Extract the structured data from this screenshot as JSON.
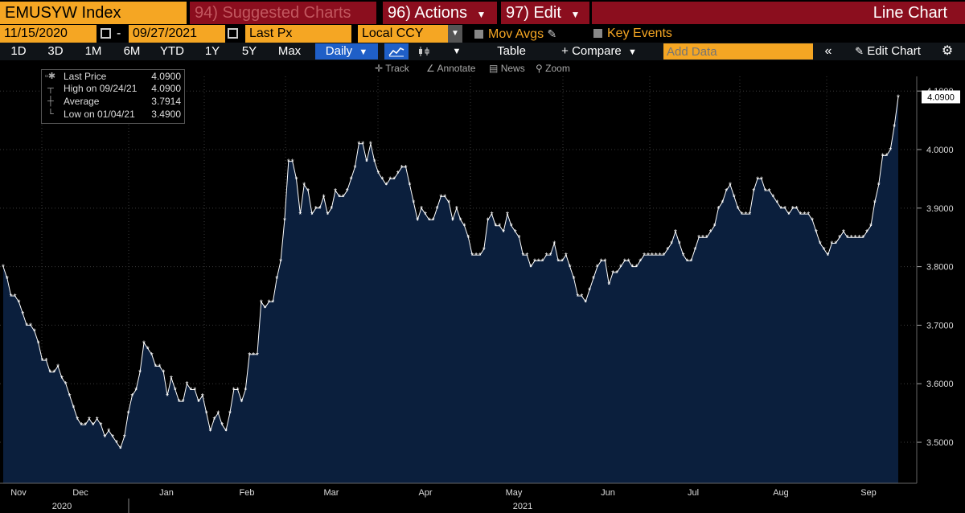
{
  "header": {
    "ticker": "EMUSYW Index",
    "suggested": "94) Suggested Charts",
    "actions": "96) Actions",
    "edit": "97) Edit",
    "chart_title": "Line Chart"
  },
  "controls": {
    "start_date": "11/15/2020",
    "date_separator": "-",
    "end_date": "09/27/2021",
    "field": "Last Px",
    "currency": "Local CCY",
    "mov_avgs": "Mov Avgs",
    "key_events": "Key Events"
  },
  "toolbar": {
    "ranges": [
      "1D",
      "3D",
      "1M",
      "6M",
      "YTD",
      "1Y",
      "5Y",
      "Max"
    ],
    "frequency": "Daily",
    "table": "Table",
    "compare": "+ Compare",
    "add_data_placeholder": "Add Data",
    "edit_chart": "Edit Chart"
  },
  "subtools": {
    "track": "Track",
    "annotate": "Annotate",
    "news": "News",
    "zoom": "Zoom"
  },
  "legend": {
    "last_price_label": "Last Price",
    "last_price": "4.0900",
    "high_label": "High on 09/24/21",
    "high": "4.0900",
    "average_label": "Average",
    "average": "3.7914",
    "low_label": "Low on 01/04/21",
    "low": "3.4900"
  },
  "colors": {
    "accent_orange": "#f5a623",
    "header_red": "#8b0e1e",
    "area_fill": "#0b1f3d",
    "line": "#ffffff"
  },
  "chart_data": {
    "type": "area",
    "series": [
      {
        "name": "Last Price",
        "values": [
          3.8,
          3.78,
          3.75,
          3.75,
          3.74,
          3.72,
          3.7,
          3.7,
          3.69,
          3.67,
          3.64,
          3.64,
          3.62,
          3.62,
          3.63,
          3.61,
          3.6,
          3.58,
          3.56,
          3.54,
          3.53,
          3.53,
          3.54,
          3.53,
          3.54,
          3.53,
          3.51,
          3.52,
          3.51,
          3.5,
          3.49,
          3.51,
          3.55,
          3.58,
          3.59,
          3.62,
          3.67,
          3.66,
          3.65,
          3.63,
          3.63,
          3.62,
          3.58,
          3.61,
          3.59,
          3.57,
          3.57,
          3.6,
          3.59,
          3.59,
          3.57,
          3.58,
          3.55,
          3.52,
          3.54,
          3.55,
          3.53,
          3.52,
          3.55,
          3.59,
          3.59,
          3.57,
          3.59,
          3.65,
          3.65,
          3.65,
          3.74,
          3.73,
          3.74,
          3.74,
          3.78,
          3.81,
          3.88,
          3.98,
          3.98,
          3.95,
          3.89,
          3.94,
          3.93,
          3.89,
          3.9,
          3.9,
          3.92,
          3.89,
          3.9,
          3.93,
          3.92,
          3.92,
          3.93,
          3.95,
          3.97,
          4.01,
          4.01,
          3.98,
          4.01,
          3.98,
          3.96,
          3.95,
          3.94,
          3.95,
          3.95,
          3.96,
          3.97,
          3.97,
          3.94,
          3.91,
          3.88,
          3.9,
          3.89,
          3.88,
          3.88,
          3.9,
          3.92,
          3.92,
          3.91,
          3.88,
          3.9,
          3.88,
          3.87,
          3.85,
          3.82,
          3.82,
          3.82,
          3.83,
          3.88,
          3.89,
          3.87,
          3.87,
          3.86,
          3.89,
          3.87,
          3.86,
          3.85,
          3.82,
          3.82,
          3.8,
          3.81,
          3.81,
          3.81,
          3.82,
          3.82,
          3.84,
          3.81,
          3.81,
          3.82,
          3.8,
          3.78,
          3.75,
          3.75,
          3.74,
          3.76,
          3.78,
          3.8,
          3.81,
          3.81,
          3.77,
          3.79,
          3.79,
          3.8,
          3.81,
          3.81,
          3.8,
          3.8,
          3.81,
          3.82,
          3.82,
          3.82,
          3.82,
          3.82,
          3.82,
          3.83,
          3.84,
          3.86,
          3.84,
          3.82,
          3.81,
          3.81,
          3.83,
          3.85,
          3.85,
          3.85,
          3.86,
          3.87,
          3.9,
          3.91,
          3.93,
          3.94,
          3.92,
          3.9,
          3.89,
          3.89,
          3.89,
          3.93,
          3.95,
          3.95,
          3.93,
          3.93,
          3.92,
          3.91,
          3.9,
          3.9,
          3.89,
          3.9,
          3.9,
          3.89,
          3.89,
          3.89,
          3.88,
          3.86,
          3.84,
          3.83,
          3.82,
          3.84,
          3.84,
          3.85,
          3.86,
          3.85,
          3.85,
          3.85,
          3.85,
          3.85,
          3.86,
          3.87,
          3.91,
          3.94,
          3.99,
          3.99,
          4.0,
          4.04,
          4.09
        ]
      }
    ],
    "x_labels": [
      "Nov",
      "Dec",
      "Jan",
      "Feb",
      "Mar",
      "Apr",
      "May",
      "Jun",
      "Jul",
      "Aug",
      "Sep"
    ],
    "year_labels": [
      "2020",
      "2021"
    ],
    "y_ticks": [
      3.5,
      3.6,
      3.7,
      3.8,
      3.9,
      4.0,
      4.1
    ],
    "y_tick_labels": [
      "3.5000",
      "3.6000",
      "3.7000",
      "3.8000",
      "3.9000",
      "4.0000",
      "4.1000"
    ],
    "last_value_label": "4.0900",
    "ylim": [
      3.43,
      4.125
    ],
    "legend_position": "top-left",
    "grid": true
  }
}
